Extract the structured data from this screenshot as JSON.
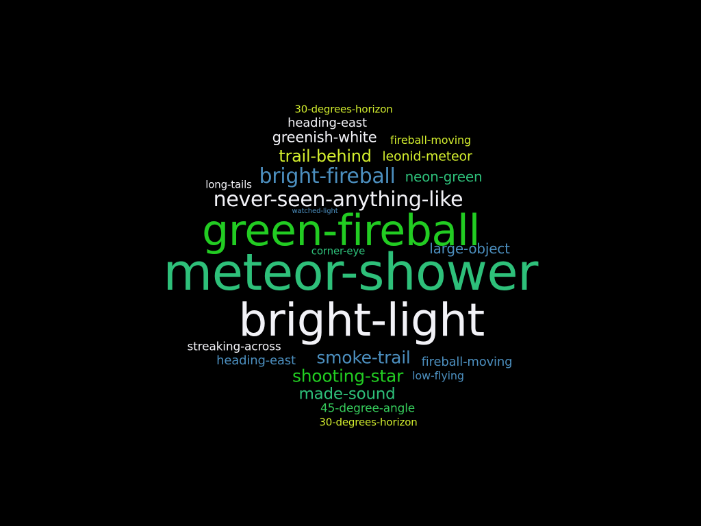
{
  "colors": {
    "background": "#000000",
    "white": "#f2f2f7",
    "teal": "#2ec07a",
    "green": "#22cc22",
    "blue": "#4c8fbf",
    "lime": "#d4ef2e",
    "greenAlt": "#35c95a"
  },
  "words": [
    {
      "text": "30-degrees-horizon",
      "color": "lime"
    },
    {
      "text": "heading-east",
      "color": "white"
    },
    {
      "text": "greenish-white",
      "color": "white"
    },
    {
      "text": "fireball-moving",
      "color": "lime"
    },
    {
      "text": "trail-behind",
      "color": "lime"
    },
    {
      "text": "leonid-meteor",
      "color": "lime"
    },
    {
      "text": "bright-fireball",
      "color": "blue"
    },
    {
      "text": "neon-green",
      "color": "teal"
    },
    {
      "text": "long-tails",
      "color": "white"
    },
    {
      "text": "never-seen-anything-like",
      "color": "white"
    },
    {
      "text": "watched-light",
      "color": "blue"
    },
    {
      "text": "green-fireball",
      "color": "green"
    },
    {
      "text": "corner-eye",
      "color": "teal"
    },
    {
      "text": "large-object",
      "color": "blue"
    },
    {
      "text": "meteor-shower",
      "color": "teal"
    },
    {
      "text": "bright-light",
      "color": "white"
    },
    {
      "text": "streaking-across",
      "color": "white"
    },
    {
      "text": "heading-east",
      "color": "blue"
    },
    {
      "text": "smoke-trail",
      "color": "blue"
    },
    {
      "text": "fireball-moving",
      "color": "blue"
    },
    {
      "text": "shooting-star",
      "color": "green"
    },
    {
      "text": "low-flying",
      "color": "blue"
    },
    {
      "text": "made-sound",
      "color": "teal"
    },
    {
      "text": "45-degree-angle",
      "color": "greenAlt"
    },
    {
      "text": "30-degrees-horizon",
      "color": "lime"
    }
  ]
}
